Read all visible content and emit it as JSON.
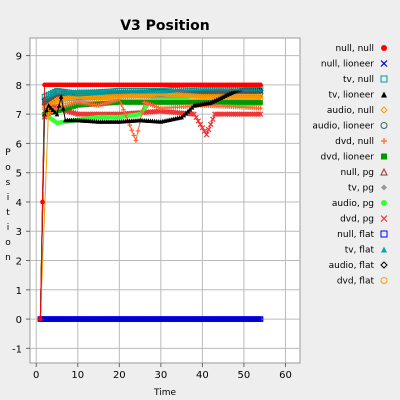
{
  "chart_data": {
    "type": "scatter",
    "title": "V3 Position",
    "xlabel": "Time",
    "ylabel": "Position",
    "xlim": [
      -1.5,
      63.5
    ],
    "ylim": [
      -1.5,
      9.6
    ],
    "xticks": [
      0,
      10,
      20,
      30,
      40,
      50,
      60
    ],
    "yticks": [
      -1,
      0,
      1,
      2,
      3,
      4,
      5,
      6,
      7,
      8,
      9
    ],
    "grid": true,
    "legend_position": "right",
    "background": "#eeeeee",
    "plot_background": "#ffffff",
    "series": [
      {
        "name": "null, null",
        "marker": "circle-filled",
        "color": "#ff0000",
        "x_start": 1,
        "x_end": 54,
        "values": [
          [
            1,
            0
          ],
          [
            2,
            8
          ],
          [
            54,
            8
          ]
        ]
      },
      {
        "name": "null, lioneer",
        "marker": "x",
        "color": "#0000cc",
        "x_start": 1,
        "x_end": 54,
        "values": [
          [
            1,
            0
          ],
          [
            54,
            0
          ]
        ]
      },
      {
        "name": "tv, null",
        "marker": "square-open",
        "color": "#009999",
        "x_start": 2,
        "x_end": 54,
        "values": [
          [
            1,
            0
          ],
          [
            2,
            7.6
          ],
          [
            5,
            7.8
          ],
          [
            10,
            7.7
          ],
          [
            20,
            7.8
          ],
          [
            30,
            7.8
          ],
          [
            40,
            7.9
          ],
          [
            54,
            7.9
          ]
        ]
      },
      {
        "name": "tv, lioneer",
        "marker": "triangle-filled",
        "color": "#000000",
        "x_start": 2,
        "x_end": 54,
        "values": [
          [
            1,
            0
          ],
          [
            2,
            7.0
          ],
          [
            3,
            7.3
          ],
          [
            5,
            7.0
          ],
          [
            6,
            7.6
          ],
          [
            7,
            6.8
          ],
          [
            10,
            6.8
          ],
          [
            15,
            6.75
          ],
          [
            20,
            6.75
          ],
          [
            25,
            6.8
          ],
          [
            30,
            6.75
          ],
          [
            35,
            6.9
          ],
          [
            38,
            7.3
          ],
          [
            42,
            7.4
          ],
          [
            45,
            7.6
          ],
          [
            48,
            7.8
          ],
          [
            50,
            7.9
          ],
          [
            54,
            7.9
          ]
        ]
      },
      {
        "name": "audio, null",
        "marker": "diamond-open",
        "color": "#ff9900",
        "x_start": 3,
        "x_end": 54,
        "values": [
          [
            1,
            0
          ],
          [
            2,
            7.2
          ],
          [
            5,
            7.5
          ],
          [
            10,
            7.6
          ],
          [
            20,
            7.6
          ],
          [
            30,
            7.7
          ],
          [
            40,
            7.6
          ],
          [
            54,
            7.6
          ]
        ]
      },
      {
        "name": "audio, lioneer",
        "marker": "circle-open",
        "color": "#336666",
        "x_start": 2,
        "x_end": 54,
        "values": [
          [
            1,
            0
          ],
          [
            2,
            7.4
          ],
          [
            5,
            7.8
          ],
          [
            10,
            7.6
          ],
          [
            20,
            7.7
          ],
          [
            30,
            7.7
          ],
          [
            40,
            7.7
          ],
          [
            54,
            7.7
          ]
        ]
      },
      {
        "name": "dvd, null",
        "marker": "plus",
        "color": "#ff6633",
        "x_start": 2,
        "x_end": 54,
        "values": [
          [
            1,
            0
          ],
          [
            2,
            6.9
          ],
          [
            5,
            7.2
          ],
          [
            10,
            7.4
          ],
          [
            15,
            7.3
          ],
          [
            20,
            7.5
          ],
          [
            24,
            6.1
          ],
          [
            26,
            7.4
          ],
          [
            30,
            7.2
          ],
          [
            40,
            7.3
          ],
          [
            54,
            7.2
          ]
        ]
      },
      {
        "name": "dvd, lioneer",
        "marker": "square-filled",
        "color": "#009900",
        "x_start": 2,
        "x_end": 54,
        "values": [
          [
            1,
            0
          ],
          [
            2,
            7.0
          ],
          [
            5,
            7.1
          ],
          [
            10,
            7.3
          ],
          [
            20,
            7.4
          ],
          [
            30,
            7.4
          ],
          [
            40,
            7.4
          ],
          [
            54,
            7.4
          ]
        ]
      },
      {
        "name": "null, pg",
        "marker": "triangle-open",
        "color": "#993333",
        "x_start": 2,
        "x_end": 54,
        "values": [
          [
            1,
            0
          ],
          [
            2,
            7.4
          ],
          [
            5,
            7.6
          ],
          [
            10,
            7.6
          ],
          [
            20,
            7.7
          ],
          [
            30,
            7.7
          ],
          [
            40,
            7.8
          ],
          [
            54,
            7.8
          ]
        ]
      },
      {
        "name": "tv, pg",
        "marker": "diamond-filled",
        "color": "#999999",
        "x_start": 2,
        "x_end": 54,
        "values": [
          [
            1,
            0
          ],
          [
            2,
            7.3
          ],
          [
            5,
            7.5
          ],
          [
            10,
            7.5
          ],
          [
            20,
            7.6
          ],
          [
            30,
            7.6
          ],
          [
            40,
            7.6
          ],
          [
            54,
            7.6
          ]
        ]
      },
      {
        "name": "audio, pg",
        "marker": "circle-filled",
        "color": "#33ff33",
        "x_start": 2,
        "x_end": 54,
        "values": [
          [
            1,
            0
          ],
          [
            2,
            7.0
          ],
          [
            5,
            6.7
          ],
          [
            10,
            6.8
          ],
          [
            15,
            6.9
          ],
          [
            20,
            6.9
          ],
          [
            25,
            7.0
          ],
          [
            28,
            7.55
          ],
          [
            32,
            7.5
          ],
          [
            36,
            7.5
          ],
          [
            40,
            7.3
          ],
          [
            44,
            7.4
          ],
          [
            48,
            7.3
          ],
          [
            54,
            7.35
          ]
        ]
      },
      {
        "name": "dvd, pg",
        "marker": "x",
        "color": "#ee3333",
        "x_start": 2,
        "x_end": 54,
        "values": [
          [
            1,
            0
          ],
          [
            2,
            6.9
          ],
          [
            3,
            7.4
          ],
          [
            5,
            7.2
          ],
          [
            10,
            7.0
          ],
          [
            20,
            7.0
          ],
          [
            30,
            7.1
          ],
          [
            38,
            7.0
          ],
          [
            41,
            6.3
          ],
          [
            43,
            7.0
          ],
          [
            54,
            7.0
          ]
        ]
      },
      {
        "name": "null, flat",
        "marker": "square-open",
        "color": "#0000ff",
        "x_start": 1,
        "x_end": 54,
        "values": [
          [
            1,
            0
          ],
          [
            54,
            0
          ]
        ]
      },
      {
        "name": "tv, flat",
        "marker": "triangle-filled",
        "color": "#00aaaa",
        "x_start": 2,
        "x_end": 54,
        "values": [
          [
            1,
            0
          ],
          [
            2,
            7.5
          ],
          [
            5,
            7.7
          ],
          [
            10,
            7.8
          ],
          [
            20,
            7.8
          ],
          [
            30,
            7.8
          ],
          [
            40,
            7.8
          ],
          [
            54,
            7.85
          ]
        ]
      },
      {
        "name": "audio, flat",
        "marker": "diamond-open",
        "color": "#000000",
        "x_start": 2,
        "x_end": 54,
        "values": [
          [
            1,
            0
          ],
          [
            2,
            7.5
          ],
          [
            5,
            7.6
          ],
          [
            10,
            7.7
          ],
          [
            20,
            7.7
          ],
          [
            30,
            7.8
          ],
          [
            40,
            7.7
          ],
          [
            54,
            7.8
          ]
        ]
      },
      {
        "name": "dvd, flat",
        "marker": "circle-open",
        "color": "#ff9900",
        "x_start": 2,
        "x_end": 54,
        "values": [
          [
            1,
            0
          ],
          [
            2,
            7.2
          ],
          [
            5,
            7.4
          ],
          [
            10,
            7.5
          ],
          [
            20,
            7.5
          ],
          [
            30,
            7.5
          ],
          [
            40,
            7.5
          ],
          [
            54,
            7.5
          ]
        ]
      }
    ]
  }
}
